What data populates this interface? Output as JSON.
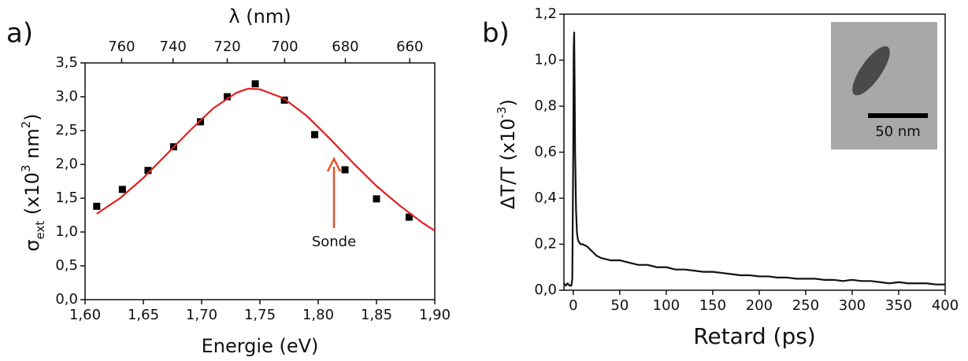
{
  "chart_data": [
    {
      "type": "scatter",
      "panel_label": "a)",
      "xlabel": "Energie (eV)",
      "x2label": "λ (nm)",
      "ylabel": [
        "σ",
        "ext",
        " (x10",
        "3",
        " nm",
        "2",
        ")"
      ],
      "annotation": "Sonde",
      "annotation_color": "#e8502a",
      "xlim": [
        1.6,
        1.9
      ],
      "xticks": [
        {
          "value": 1.6,
          "label": "1,60"
        },
        {
          "value": 1.65,
          "label": "1,65"
        },
        {
          "value": 1.7,
          "label": "1,70"
        },
        {
          "value": 1.75,
          "label": "1,75"
        },
        {
          "value": 1.8,
          "label": "1,80"
        },
        {
          "value": 1.85,
          "label": "1,85"
        },
        {
          "value": 1.9,
          "label": "1,90"
        }
      ],
      "x2ticks": [
        760,
        740,
        720,
        700,
        680,
        660
      ],
      "ylim": [
        0,
        3.5
      ],
      "yticks": [
        {
          "value": 0,
          "label": "0,0"
        },
        {
          "value": 0.5,
          "label": "0,5"
        },
        {
          "value": 1,
          "label": "1,0"
        },
        {
          "value": 1.5,
          "label": "1,5"
        },
        {
          "value": 2,
          "label": "2,0"
        },
        {
          "value": 2.5,
          "label": "2,5"
        },
        {
          "value": 3,
          "label": "3,0"
        },
        {
          "value": 3.5,
          "label": "3,5"
        }
      ],
      "series": [
        {
          "type": "scatter",
          "color": "#000000",
          "x": [
            1.61,
            1.632,
            1.654,
            1.676,
            1.699,
            1.722,
            1.746,
            1.771,
            1.797,
            1.823,
            1.85,
            1.878
          ],
          "values": [
            1.38,
            1.63,
            1.91,
            2.26,
            2.63,
            3.0,
            3.19,
            2.95,
            2.44,
            1.92,
            1.49,
            1.22
          ]
        },
        {
          "type": "line",
          "color": "#e02020",
          "x": [
            1.61,
            1.63,
            1.65,
            1.67,
            1.69,
            1.71,
            1.73,
            1.74,
            1.75,
            1.77,
            1.79,
            1.81,
            1.83,
            1.85,
            1.87,
            1.89,
            1.9
          ],
          "values": [
            1.27,
            1.5,
            1.8,
            2.15,
            2.5,
            2.83,
            3.06,
            3.12,
            3.11,
            2.98,
            2.72,
            2.38,
            2.02,
            1.68,
            1.39,
            1.13,
            1.02
          ]
        }
      ]
    },
    {
      "type": "line",
      "panel_label": "b)",
      "xlabel": "Retard (ps)",
      "ylabel": [
        "ΔT/T (x10",
        "-3",
        ")"
      ],
      "inset_scale_label": "50 nm",
      "xlim": [
        -10,
        400
      ],
      "xticks": [
        0,
        50,
        100,
        150,
        200,
        250,
        300,
        350,
        400
      ],
      "ylim": [
        0,
        1.2
      ],
      "yticks": [
        {
          "value": 0,
          "label": "0,0"
        },
        {
          "value": 0.2,
          "label": "0,2"
        },
        {
          "value": 0.4,
          "label": "0,4"
        },
        {
          "value": 0.6,
          "label": "0,6"
        },
        {
          "value": 0.8,
          "label": "0,8"
        },
        {
          "value": 1,
          "label": "1,0"
        },
        {
          "value": 1.2,
          "label": "1,2"
        }
      ],
      "series": [
        {
          "type": "line",
          "color": "#111111",
          "x": [
            -10,
            -8,
            -6,
            -4,
            -2,
            -1,
            0,
            0.5,
            1,
            1.5,
            2,
            3,
            4,
            5,
            6,
            8,
            10,
            15,
            20,
            25,
            30,
            40,
            50,
            60,
            70,
            80,
            90,
            100,
            110,
            120,
            130,
            140,
            150,
            160,
            170,
            180,
            190,
            200,
            210,
            220,
            230,
            240,
            250,
            260,
            270,
            280,
            290,
            300,
            310,
            320,
            330,
            340,
            350,
            360,
            370,
            380,
            390,
            400
          ],
          "values": [
            0.03,
            0.02,
            0.03,
            0.02,
            0.02,
            0.05,
            0.6,
            1.05,
            1.12,
            0.9,
            0.6,
            0.35,
            0.25,
            0.22,
            0.21,
            0.2,
            0.2,
            0.19,
            0.17,
            0.15,
            0.14,
            0.13,
            0.13,
            0.12,
            0.11,
            0.11,
            0.1,
            0.1,
            0.09,
            0.09,
            0.085,
            0.08,
            0.08,
            0.075,
            0.07,
            0.065,
            0.065,
            0.06,
            0.06,
            0.055,
            0.055,
            0.05,
            0.05,
            0.05,
            0.045,
            0.045,
            0.04,
            0.045,
            0.04,
            0.04,
            0.035,
            0.03,
            0.035,
            0.03,
            0.03,
            0.03,
            0.025,
            0.025
          ]
        }
      ]
    }
  ]
}
